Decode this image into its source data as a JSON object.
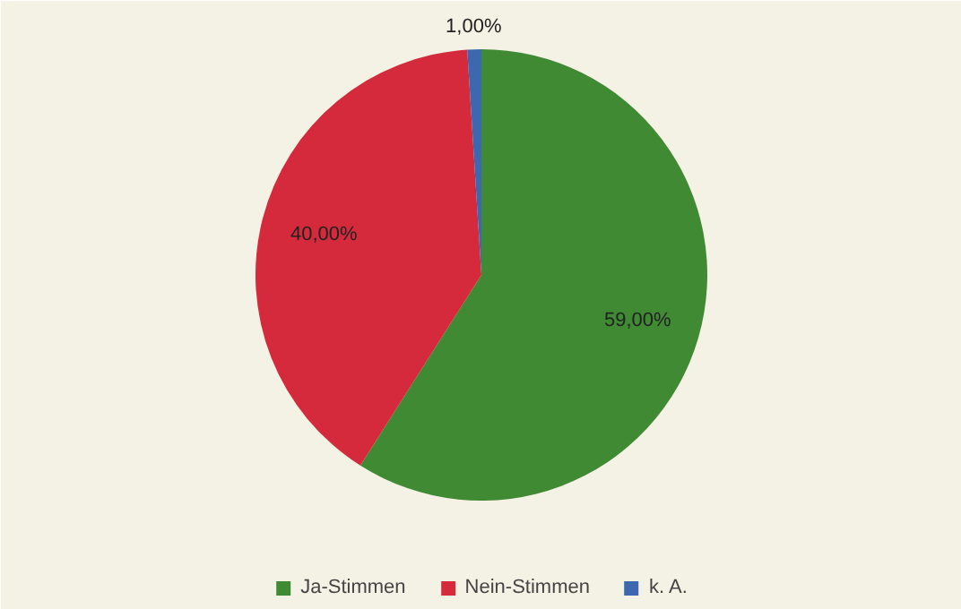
{
  "chart_data": {
    "type": "pie",
    "categories": [
      "Ja-Stimmen",
      "Nein-Stimmen",
      "k. A."
    ],
    "values": [
      59,
      40,
      1
    ],
    "colors": [
      "#3f8a33",
      "#d42a3c",
      "#3d67ae"
    ],
    "value_labels": [
      "59,00%",
      "40,00%",
      "1,00%"
    ],
    "legend": "bottom"
  }
}
